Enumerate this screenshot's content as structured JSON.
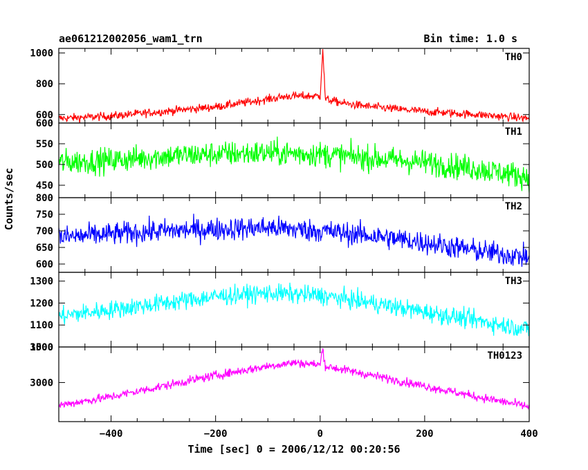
{
  "header": {
    "left_title": "ae061212002056_wam1_trn",
    "right_title": "Bin time: 1.0 s"
  },
  "axes": {
    "ylabel": "Counts/sec",
    "xlabel": "Time [sec] 0 = 2006/12/12 00:20:56"
  },
  "chart_data": {
    "type": "line",
    "x_range": [
      -500,
      400
    ],
    "x_ticks": [
      -400,
      -200,
      0,
      200,
      400
    ],
    "x_tick_labels": [
      "−400",
      "−200",
      "0",
      "200",
      "400"
    ],
    "panels": [
      {
        "name": "TH0",
        "color": "#ff0000",
        "ylim": [
          545,
          1030
        ],
        "y_ticks": [
          600,
          800,
          1000
        ],
        "y_tick_labels": [
          "600",
          "800",
          "1000"
        ],
        "x": [
          -500,
          -400,
          -300,
          -200,
          -100,
          -60,
          0,
          5,
          10,
          50,
          100,
          200,
          300,
          400
        ],
        "y": [
          575,
          590,
          620,
          650,
          700,
          720,
          720,
          1025,
          700,
          670,
          650,
          620,
          600,
          575
        ],
        "noise": 35
      },
      {
        "name": "TH1",
        "color": "#00ff00",
        "ylim": [
          420,
          600
        ],
        "y_ticks": [
          450,
          500,
          550,
          600
        ],
        "y_tick_labels": [
          "450",
          "500",
          "550",
          "600"
        ],
        "x": [
          -500,
          -400,
          -300,
          -200,
          -100,
          0,
          100,
          200,
          300,
          400
        ],
        "y": [
          505,
          510,
          520,
          525,
          528,
          525,
          515,
          505,
          490,
          470
        ],
        "noise": 40
      },
      {
        "name": "TH2",
        "color": "#0000ff",
        "ylim": [
          575,
          800
        ],
        "y_ticks": [
          600,
          650,
          700,
          750,
          800
        ],
        "y_tick_labels": [
          "600",
          "650",
          "700",
          "750",
          "800"
        ],
        "x": [
          -500,
          -400,
          -300,
          -200,
          -100,
          0,
          100,
          200,
          300,
          400
        ],
        "y": [
          680,
          690,
          700,
          705,
          710,
          700,
          685,
          665,
          640,
          620
        ],
        "noise": 45
      },
      {
        "name": "TH3",
        "color": "#00ffff",
        "ylim": [
          1000,
          1340
        ],
        "y_ticks": [
          1000,
          1100,
          1200,
          1300
        ],
        "y_tick_labels": [
          "1000",
          "1100",
          "1200",
          "1300"
        ],
        "x": [
          -500,
          -400,
          -300,
          -200,
          -100,
          0,
          100,
          200,
          300,
          400
        ],
        "y": [
          1140,
          1170,
          1200,
          1230,
          1245,
          1235,
          1200,
          1160,
          1120,
          1080
        ],
        "noise": 55
      },
      {
        "name": "TH0123",
        "color": "#ff00ff",
        "ylim": [
          2450,
          3500
        ],
        "y_ticks": [
          3000,
          3500
        ],
        "y_tick_labels": [
          "3000",
          "3500"
        ],
        "x": [
          -500,
          -400,
          -300,
          -200,
          -100,
          -50,
          0,
          5,
          10,
          100,
          200,
          300,
          400
        ],
        "y": [
          2680,
          2800,
          2950,
          3100,
          3230,
          3280,
          3250,
          3480,
          3230,
          3100,
          2950,
          2800,
          2660
        ],
        "noise": 80
      }
    ]
  }
}
